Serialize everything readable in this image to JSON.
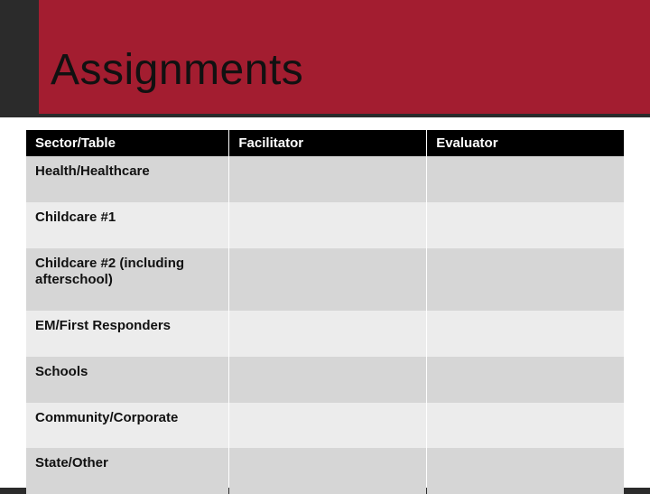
{
  "slide": {
    "title": "Assignments",
    "banner_color": "#a31d30",
    "banner_accent_color": "#2b2b2b",
    "background_color": "#ffffff",
    "title_color": "#111111",
    "title_fontsize": 48
  },
  "table": {
    "columns": [
      {
        "label": "Sector/Table",
        "width_pct": 34
      },
      {
        "label": "Facilitator",
        "width_pct": 33
      },
      {
        "label": "Evaluator",
        "width_pct": 33
      }
    ],
    "header_bg": "#000000",
    "header_fg": "#ffffff",
    "row_odd_bg": "#d6d6d6",
    "row_even_bg": "#ececec",
    "cell_font_weight": 700,
    "cell_fontsize": 15,
    "rows": [
      {
        "sector": "Health/Healthcare",
        "facilitator": "",
        "evaluator": ""
      },
      {
        "sector": "Childcare #1",
        "facilitator": "",
        "evaluator": ""
      },
      {
        "sector": "Childcare #2\n(including afterschool)",
        "facilitator": "",
        "evaluator": ""
      },
      {
        "sector": "EM/First Responders",
        "facilitator": "",
        "evaluator": ""
      },
      {
        "sector": "Schools",
        "facilitator": "",
        "evaluator": ""
      },
      {
        "sector": "Community/Corporate",
        "facilitator": "",
        "evaluator": ""
      },
      {
        "sector": "State/Other",
        "facilitator": "",
        "evaluator": ""
      }
    ]
  }
}
